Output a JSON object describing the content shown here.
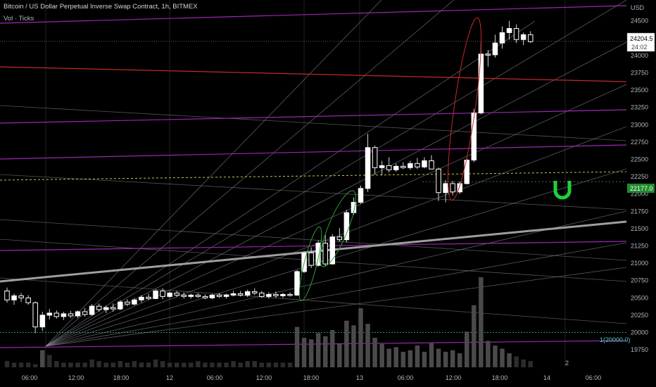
{
  "header": {
    "title": "Bitcoin / US Dollar Perpetual Inverse Swap Contract, 1h, BITMEX",
    "study": "Vol · Ticks"
  },
  "axis": {
    "currency": "USD",
    "price_label": "24204.5",
    "countdown": "24:02",
    "green_level_label": "22177.0",
    "fib_label": "1(20000.0)",
    "pane_number": "2"
  },
  "chart_data": {
    "type": "candlestick",
    "title": "Bitcoin / US Dollar Perpetual Inverse Swap Contract, 1h, BITMEX",
    "ylabel": "USD",
    "ylim": [
      19660,
      24720
    ],
    "y_ticks": [
      19750,
      20000,
      20250,
      20500,
      20750,
      21000,
      21250,
      21500,
      21750,
      22000,
      22250,
      22500,
      22750,
      23000,
      23250,
      23500,
      23750,
      24000,
      24250,
      24500
    ],
    "x_ticks": [
      "06:00",
      "12:00",
      "18:00",
      "12",
      "06:00",
      "12:00",
      "18:00",
      "13",
      "06:00",
      "12:00",
      "18:00",
      "14",
      "06:00"
    ],
    "last_price": 24204.5,
    "green_level": 22177.0,
    "fib_level": 20000.0,
    "candles": [
      {
        "o": 20600,
        "h": 20650,
        "l": 20430,
        "c": 20470
      },
      {
        "o": 20470,
        "h": 20560,
        "l": 20400,
        "c": 20530
      },
      {
        "o": 20530,
        "h": 20570,
        "l": 20440,
        "c": 20500
      },
      {
        "o": 20500,
        "h": 20540,
        "l": 20400,
        "c": 20430
      },
      {
        "o": 20430,
        "h": 20450,
        "l": 19990,
        "c": 20080
      },
      {
        "o": 20080,
        "h": 20300,
        "l": 20020,
        "c": 20250
      },
      {
        "o": 20250,
        "h": 20340,
        "l": 20190,
        "c": 20280
      },
      {
        "o": 20280,
        "h": 20320,
        "l": 20200,
        "c": 20230
      },
      {
        "o": 20230,
        "h": 20300,
        "l": 20180,
        "c": 20270
      },
      {
        "o": 20270,
        "h": 20310,
        "l": 20210,
        "c": 20240
      },
      {
        "o": 20240,
        "h": 20320,
        "l": 20210,
        "c": 20300
      },
      {
        "o": 20300,
        "h": 20350,
        "l": 20230,
        "c": 20260
      },
      {
        "o": 20260,
        "h": 20410,
        "l": 20240,
        "c": 20380
      },
      {
        "o": 20380,
        "h": 20420,
        "l": 20300,
        "c": 20330
      },
      {
        "o": 20330,
        "h": 20390,
        "l": 20280,
        "c": 20360
      },
      {
        "o": 20360,
        "h": 20420,
        "l": 20300,
        "c": 20340
      },
      {
        "o": 20340,
        "h": 20470,
        "l": 20320,
        "c": 20440
      },
      {
        "o": 20440,
        "h": 20480,
        "l": 20380,
        "c": 20410
      },
      {
        "o": 20410,
        "h": 20500,
        "l": 20390,
        "c": 20470
      },
      {
        "o": 20470,
        "h": 20540,
        "l": 20430,
        "c": 20510
      },
      {
        "o": 20510,
        "h": 20560,
        "l": 20470,
        "c": 20490
      },
      {
        "o": 20490,
        "h": 20620,
        "l": 20480,
        "c": 20600
      },
      {
        "o": 20600,
        "h": 20640,
        "l": 20480,
        "c": 20520
      },
      {
        "o": 20520,
        "h": 20590,
        "l": 20500,
        "c": 20570
      },
      {
        "o": 20570,
        "h": 20600,
        "l": 20510,
        "c": 20540
      },
      {
        "o": 20540,
        "h": 20580,
        "l": 20490,
        "c": 20520
      },
      {
        "o": 20520,
        "h": 20560,
        "l": 20490,
        "c": 20540
      },
      {
        "o": 20540,
        "h": 20570,
        "l": 20500,
        "c": 20520
      },
      {
        "o": 20520,
        "h": 20550,
        "l": 20480,
        "c": 20500
      },
      {
        "o": 20500,
        "h": 20560,
        "l": 20480,
        "c": 20540
      },
      {
        "o": 20540,
        "h": 20570,
        "l": 20500,
        "c": 20520
      },
      {
        "o": 20520,
        "h": 20560,
        "l": 20490,
        "c": 20540
      },
      {
        "o": 20540,
        "h": 20600,
        "l": 20520,
        "c": 20560
      },
      {
        "o": 20560,
        "h": 20600,
        "l": 20520,
        "c": 20540
      },
      {
        "o": 20540,
        "h": 20620,
        "l": 20510,
        "c": 20590
      },
      {
        "o": 20590,
        "h": 20640,
        "l": 20540,
        "c": 20570
      },
      {
        "o": 20570,
        "h": 20600,
        "l": 20500,
        "c": 20520
      },
      {
        "o": 20520,
        "h": 20580,
        "l": 20490,
        "c": 20550
      },
      {
        "o": 20550,
        "h": 20590,
        "l": 20500,
        "c": 20530
      },
      {
        "o": 20530,
        "h": 20570,
        "l": 20500,
        "c": 20550
      },
      {
        "o": 20550,
        "h": 20580,
        "l": 20520,
        "c": 20540
      },
      {
        "o": 20540,
        "h": 20900,
        "l": 20530,
        "c": 20880
      },
      {
        "o": 20880,
        "h": 21170,
        "l": 20860,
        "c": 21150
      },
      {
        "o": 21150,
        "h": 21230,
        "l": 20930,
        "c": 20970
      },
      {
        "o": 20970,
        "h": 21330,
        "l": 20950,
        "c": 21290
      },
      {
        "o": 21290,
        "h": 21410,
        "l": 20960,
        "c": 20990
      },
      {
        "o": 20990,
        "h": 21420,
        "l": 20980,
        "c": 21380
      },
      {
        "o": 21380,
        "h": 21510,
        "l": 21310,
        "c": 21340
      },
      {
        "o": 21340,
        "h": 21770,
        "l": 21300,
        "c": 21730
      },
      {
        "o": 21730,
        "h": 21950,
        "l": 21700,
        "c": 21880
      },
      {
        "o": 21880,
        "h": 22120,
        "l": 21860,
        "c": 22080
      },
      {
        "o": 22080,
        "h": 22870,
        "l": 22030,
        "c": 22670
      },
      {
        "o": 22670,
        "h": 22700,
        "l": 22280,
        "c": 22380
      },
      {
        "o": 22380,
        "h": 22480,
        "l": 22270,
        "c": 22410
      },
      {
        "o": 22410,
        "h": 22530,
        "l": 22310,
        "c": 22350
      },
      {
        "o": 22350,
        "h": 22440,
        "l": 22320,
        "c": 22400
      },
      {
        "o": 22400,
        "h": 22460,
        "l": 22360,
        "c": 22380
      },
      {
        "o": 22380,
        "h": 22480,
        "l": 22350,
        "c": 22440
      },
      {
        "o": 22440,
        "h": 22520,
        "l": 22360,
        "c": 22390
      },
      {
        "o": 22390,
        "h": 22530,
        "l": 22370,
        "c": 22480
      },
      {
        "o": 22480,
        "h": 22560,
        "l": 22360,
        "c": 22360
      },
      {
        "o": 22360,
        "h": 22380,
        "l": 21900,
        "c": 22020
      },
      {
        "o": 22020,
        "h": 22200,
        "l": 21880,
        "c": 22150
      },
      {
        "o": 22150,
        "h": 22190,
        "l": 21980,
        "c": 22030
      },
      {
        "o": 22030,
        "h": 22180,
        "l": 22000,
        "c": 22150
      },
      {
        "o": 22150,
        "h": 22520,
        "l": 22140,
        "c": 22490
      },
      {
        "o": 22490,
        "h": 23230,
        "l": 22460,
        "c": 23170
      },
      {
        "o": 23170,
        "h": 24200,
        "l": 23150,
        "c": 24020
      },
      {
        "o": 24020,
        "h": 24080,
        "l": 23840,
        "c": 24010
      },
      {
        "o": 24010,
        "h": 24300,
        "l": 23970,
        "c": 24180
      },
      {
        "o": 24180,
        "h": 24420,
        "l": 24100,
        "c": 24330
      },
      {
        "o": 24330,
        "h": 24500,
        "l": 24230,
        "c": 24390
      },
      {
        "o": 24390,
        "h": 24450,
        "l": 24180,
        "c": 24230
      },
      {
        "o": 24230,
        "h": 24330,
        "l": 24150,
        "c": 24300
      },
      {
        "o": 24300,
        "h": 24350,
        "l": 24180,
        "c": 24200
      }
    ],
    "volume": [
      4,
      3,
      3,
      3,
      2,
      11,
      8,
      4,
      3,
      3,
      3,
      3,
      5,
      4,
      3,
      3,
      4,
      3,
      4,
      3,
      3,
      5,
      4,
      3,
      3,
      3,
      3,
      4,
      3,
      3,
      3,
      3,
      4,
      3,
      4,
      4,
      3,
      3,
      3,
      3,
      3,
      26,
      19,
      18,
      22,
      20,
      24,
      15,
      30,
      27,
      38,
      28,
      19,
      15,
      12,
      13,
      10,
      11,
      14,
      10,
      16,
      12,
      10,
      11,
      9,
      23,
      40,
      58,
      17,
      14,
      12,
      9,
      7,
      5,
      4
    ]
  }
}
